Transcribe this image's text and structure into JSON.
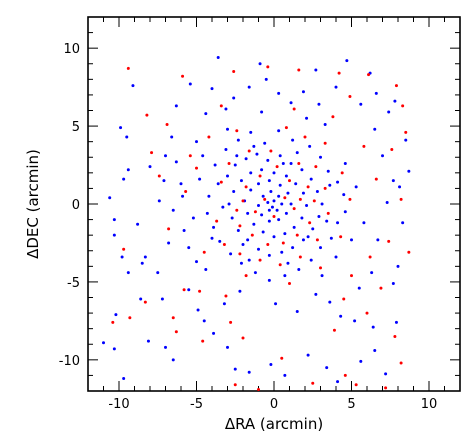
{
  "chart_data": {
    "type": "scatter",
    "title": "",
    "xlabel": "ΔRA (arcmin)",
    "ylabel": "ΔDEC (arcmin)",
    "xlim": [
      -12,
      12
    ],
    "ylim": [
      -12,
      12
    ],
    "x_ticks": [
      -10,
      -5,
      0,
      5,
      10
    ],
    "y_ticks": [
      -10,
      -5,
      0,
      5,
      10
    ],
    "grid": false,
    "legend": "none",
    "series": [
      {
        "color": "#0000ff",
        "points": [
          [
            -9.9,
            4.9
          ],
          [
            -9.5,
            4.3
          ],
          [
            -9.4,
            2.2
          ],
          [
            -9.7,
            1.6
          ],
          [
            -10.6,
            0.4
          ],
          [
            -10.3,
            -1.0
          ],
          [
            -10.3,
            -2.0
          ],
          [
            -9.8,
            -3.4
          ],
          [
            -9.4,
            -4.4
          ],
          [
            -8.5,
            -3.8
          ],
          [
            -8.3,
            -3.4
          ],
          [
            -10.2,
            -7.1
          ],
          [
            -11.0,
            -8.9
          ],
          [
            -10.3,
            -9.3
          ],
          [
            -9.7,
            -11.2
          ],
          [
            -8.6,
            -6.1
          ],
          [
            -8.1,
            -8.8
          ],
          [
            -7.2,
            -6.1
          ],
          [
            -7.0,
            -9.2
          ],
          [
            -6.5,
            -10.0
          ],
          [
            -8.0,
            2.4
          ],
          [
            -7.1,
            1.5
          ],
          [
            -7.0,
            3.1
          ],
          [
            -6.6,
            4.3
          ],
          [
            -6.3,
            2.7
          ],
          [
            -6.0,
            1.3
          ],
          [
            -5.9,
            0.5
          ],
          [
            -6.5,
            -0.4
          ],
          [
            -5.8,
            -1.7
          ],
          [
            -5.5,
            -2.8
          ],
          [
            -5.0,
            -3.7
          ],
          [
            -4.4,
            -4.2
          ],
          [
            -5.5,
            -5.5
          ],
          [
            -4.9,
            -6.8
          ],
          [
            -4.5,
            -7.5
          ],
          [
            -3.9,
            -8.3
          ],
          [
            -3.0,
            -9.2
          ],
          [
            -2.5,
            -10.6
          ],
          [
            -1.6,
            -10.8
          ],
          [
            -0.2,
            -10.3
          ],
          [
            0.7,
            -11.0
          ],
          [
            2.2,
            -9.7
          ],
          [
            3.4,
            -10.5
          ],
          [
            4.1,
            -11.4
          ],
          [
            5.6,
            -10.1
          ],
          [
            6.5,
            -9.4
          ],
          [
            7.2,
            -10.9
          ],
          [
            6.4,
            -7.9
          ],
          [
            5.2,
            -7.5
          ],
          [
            4.3,
            -7.2
          ],
          [
            3.6,
            -6.3
          ],
          [
            5.5,
            -5.4
          ],
          [
            6.3,
            -4.4
          ],
          [
            7.7,
            -5.1
          ],
          [
            8.0,
            -4.0
          ],
          [
            7.9,
            -7.6
          ],
          [
            6.7,
            -2.3
          ],
          [
            7.3,
            0.1
          ],
          [
            7.7,
            1.5
          ],
          [
            8.1,
            1.1
          ],
          [
            8.7,
            2.1
          ],
          [
            7.0,
            3.1
          ],
          [
            6.5,
            4.8
          ],
          [
            7.4,
            5.9
          ],
          [
            6.6,
            7.1
          ],
          [
            6.2,
            8.4
          ],
          [
            5.6,
            6.4
          ],
          [
            4.0,
            7.5
          ],
          [
            2.9,
            6.4
          ],
          [
            2.1,
            5.5
          ],
          [
            1.1,
            6.5
          ],
          [
            0.3,
            7.1
          ],
          [
            -0.5,
            8.0
          ],
          [
            -1.6,
            7.5
          ],
          [
            -2.6,
            6.8
          ],
          [
            -3.1,
            6.1
          ],
          [
            -4.0,
            7.4
          ],
          [
            -4.4,
            5.8
          ],
          [
            -5.4,
            7.7
          ],
          [
            -6.3,
            6.3
          ],
          [
            -5.0,
            4.0
          ],
          [
            -4.6,
            3.1
          ],
          [
            -3.8,
            2.5
          ],
          [
            -3.1,
            3.5
          ],
          [
            -2.3,
            4.1
          ],
          [
            -1.5,
            4.6
          ],
          [
            -0.6,
            3.9
          ],
          [
            0.3,
            4.7
          ],
          [
            1.2,
            4.1
          ],
          [
            2.3,
            3.7
          ],
          [
            3.0,
            3.0
          ],
          [
            3.5,
            2.1
          ],
          [
            4.1,
            1.4
          ],
          [
            4.5,
            0.6
          ],
          [
            4.6,
            -0.5
          ],
          [
            4.1,
            -1.2
          ],
          [
            3.7,
            -2.2
          ],
          [
            3.0,
            -2.8
          ],
          [
            2.4,
            -3.6
          ],
          [
            1.6,
            -4.2
          ],
          [
            0.7,
            -4.6
          ],
          [
            -0.3,
            -4.9
          ],
          [
            -1.2,
            -4.4
          ],
          [
            -2.1,
            -3.8
          ],
          [
            -2.8,
            -3.2
          ],
          [
            -3.5,
            -2.4
          ],
          [
            -3.9,
            -1.5
          ],
          [
            -4.3,
            -0.6
          ],
          [
            -4.2,
            0.5
          ],
          [
            -3.6,
            1.3
          ],
          [
            -3.0,
            1.8
          ],
          [
            -2.5,
            2.5
          ],
          [
            -1.8,
            2.9
          ],
          [
            -1.1,
            3.2
          ],
          [
            -0.4,
            2.8
          ],
          [
            0.4,
            3.1
          ],
          [
            1.1,
            2.6
          ],
          [
            1.8,
            2.2
          ],
          [
            2.4,
            1.6
          ],
          [
            2.8,
            0.8
          ],
          [
            3.1,
            0.0
          ],
          [
            2.9,
            -0.8
          ],
          [
            2.5,
            -1.6
          ],
          [
            1.9,
            -2.3
          ],
          [
            1.2,
            -2.8
          ],
          [
            0.5,
            -3.1
          ],
          [
            -0.3,
            -3.3
          ],
          [
            -1.0,
            -2.9
          ],
          [
            -1.7,
            -2.3
          ],
          [
            -2.3,
            -1.7
          ],
          [
            -2.7,
            -0.9
          ],
          [
            -2.9,
            0.0
          ],
          [
            -2.6,
            0.8
          ],
          [
            -2.1,
            1.5
          ],
          [
            -1.5,
            2.0
          ],
          [
            -0.8,
            2.2
          ],
          [
            0.0,
            2.0
          ],
          [
            0.8,
            1.8
          ],
          [
            1.4,
            1.3
          ],
          [
            1.9,
            0.7
          ],
          [
            2.1,
            -0.1
          ],
          [
            1.8,
            -0.9
          ],
          [
            1.3,
            -1.5
          ],
          [
            0.7,
            -1.9
          ],
          [
            0.0,
            -2.1
          ],
          [
            -0.7,
            -1.8
          ],
          [
            -1.3,
            -1.3
          ],
          [
            -1.7,
            -0.6
          ],
          [
            -1.9,
            0.2
          ],
          [
            -1.5,
            0.9
          ],
          [
            -1.0,
            1.3
          ],
          [
            -0.3,
            1.5
          ],
          [
            0.4,
            1.2
          ],
          [
            0.9,
            0.7
          ],
          [
            1.1,
            0.0
          ],
          [
            0.8,
            -0.6
          ],
          [
            0.3,
            -1.0
          ],
          [
            -0.3,
            -1.1
          ],
          [
            -0.8,
            -0.7
          ],
          [
            -1.0,
            -0.1
          ],
          [
            -0.7,
            0.5
          ],
          [
            -0.2,
            0.8
          ],
          [
            0.3,
            0.5
          ],
          [
            0.5,
            0.0
          ],
          [
            0.2,
            -0.4
          ],
          [
            -0.3,
            -0.4
          ],
          [
            -0.4,
            0.1
          ],
          [
            0.0,
            0.2
          ],
          [
            -0.1,
            -0.2
          ],
          [
            0.6,
            2.6
          ],
          [
            -1.3,
            3.7
          ],
          [
            -2.0,
            -2.6
          ],
          [
            2.2,
            -2.1
          ],
          [
            3.4,
            -1.1
          ],
          [
            1.5,
            3.3
          ],
          [
            -3.3,
            -0.2
          ],
          [
            -2.4,
            3.1
          ],
          [
            0.9,
            -3.8
          ],
          [
            -1.6,
            -3.6
          ],
          [
            3.6,
            1.2
          ],
          [
            4.6,
            2.6
          ],
          [
            5.0,
            -2.3
          ],
          [
            5.8,
            -1.2
          ],
          [
            5.3,
            1.1
          ],
          [
            4.0,
            -3.4
          ],
          [
            3.1,
            -4.6
          ],
          [
            -4.8,
            1.6
          ],
          [
            -5.2,
            -0.9
          ],
          [
            -4.0,
            -2.2
          ],
          [
            -3.0,
            4.8
          ],
          [
            -0.8,
            5.9
          ],
          [
            1.9,
            7.2
          ],
          [
            3.3,
            5.1
          ],
          [
            -2.2,
            -5.6
          ],
          [
            0.1,
            -6.4
          ],
          [
            1.5,
            -6.9
          ],
          [
            -3.2,
            -6.4
          ],
          [
            2.7,
            -5.8
          ],
          [
            -6.8,
            -2.5
          ],
          [
            -7.5,
            -4.4
          ],
          [
            -8.8,
            -1.3
          ],
          [
            -7.4,
            0.2
          ],
          [
            8.3,
            -1.2
          ],
          [
            8.5,
            4.1
          ],
          [
            7.8,
            6.6
          ],
          [
            -9.1,
            7.6
          ],
          [
            -0.9,
            9.0
          ],
          [
            4.7,
            9.2
          ],
          [
            -3.6,
            9.4
          ],
          [
            2.7,
            8.6
          ]
        ]
      },
      {
        "color": "#ff0000",
        "points": [
          [
            -9.4,
            8.7
          ],
          [
            -5.9,
            8.2
          ],
          [
            -2.6,
            8.5
          ],
          [
            -0.4,
            8.8
          ],
          [
            1.6,
            8.6
          ],
          [
            4.2,
            8.4
          ],
          [
            6.1,
            8.3
          ],
          [
            7.9,
            7.6
          ],
          [
            8.3,
            6.3
          ],
          [
            8.5,
            4.6
          ],
          [
            7.6,
            3.5
          ],
          [
            -6.9,
            5.1
          ],
          [
            -7.9,
            3.3
          ],
          [
            -8.2,
            5.7
          ],
          [
            -9.7,
            -2.9
          ],
          [
            -10.4,
            -7.6
          ],
          [
            -9.3,
            -7.3
          ],
          [
            -8.3,
            -6.3
          ],
          [
            -6.5,
            -7.3
          ],
          [
            -6.3,
            -8.2
          ],
          [
            -5.8,
            -5.5
          ],
          [
            -4.8,
            -5.6
          ],
          [
            -3.1,
            -5.9
          ],
          [
            -2.8,
            -7.6
          ],
          [
            -2.0,
            -8.6
          ],
          [
            -2.5,
            -11.6
          ],
          [
            -1.0,
            -11.9
          ],
          [
            0.5,
            -9.9
          ],
          [
            2.5,
            -11.5
          ],
          [
            4.6,
            -11.0
          ],
          [
            5.3,
            -11.6
          ],
          [
            7.2,
            -11.8
          ],
          [
            8.2,
            -10.2
          ],
          [
            7.8,
            -8.5
          ],
          [
            6.0,
            -7.0
          ],
          [
            4.5,
            -6.1
          ],
          [
            5.0,
            -4.6
          ],
          [
            6.2,
            -3.4
          ],
          [
            7.4,
            -2.4
          ],
          [
            8.2,
            0.3
          ],
          [
            6.6,
            1.6
          ],
          [
            5.8,
            3.7
          ],
          [
            3.8,
            5.6
          ],
          [
            2.0,
            4.3
          ],
          [
            1.7,
            0.3
          ],
          [
            -5.7,
            0.8
          ],
          [
            -5.0,
            2.3
          ],
          [
            -4.2,
            4.3
          ],
          [
            -3.4,
            1.4
          ],
          [
            -2.0,
            0.2
          ],
          [
            -1.2,
            -0.5
          ],
          [
            -0.6,
            0.3
          ],
          [
            0.0,
            -0.8
          ],
          [
            0.7,
            0.4
          ],
          [
            1.3,
            -0.3
          ],
          [
            1.0,
            1.5
          ],
          [
            0.2,
            2.4
          ],
          [
            -0.9,
            1.8
          ],
          [
            -1.8,
            1.1
          ],
          [
            -2.4,
            -0.4
          ],
          [
            -2.2,
            -1.4
          ],
          [
            -1.4,
            -2.0
          ],
          [
            -0.4,
            -2.6
          ],
          [
            0.6,
            -2.5
          ],
          [
            1.5,
            -2.0
          ],
          [
            2.3,
            -1.2
          ],
          [
            2.6,
            0.2
          ],
          [
            2.2,
            1.1
          ],
          [
            1.6,
            2.6
          ],
          [
            -0.2,
            3.4
          ],
          [
            -1.6,
            3.4
          ],
          [
            -2.9,
            2.6
          ],
          [
            -3.7,
            -1.1
          ],
          [
            -3.2,
            -2.6
          ],
          [
            -2.2,
            -3.2
          ],
          [
            -0.9,
            -3.6
          ],
          [
            0.4,
            -3.9
          ],
          [
            1.7,
            -3.4
          ],
          [
            2.8,
            -2.3
          ],
          [
            3.5,
            -0.6
          ],
          [
            3.3,
            1.0
          ],
          [
            2.7,
            2.4
          ],
          [
            -4.5,
            -3.1
          ],
          [
            -1.8,
            -4.6
          ],
          [
            1.0,
            -5.1
          ],
          [
            3.0,
            -4.1
          ],
          [
            4.3,
            -2.1
          ],
          [
            4.9,
            0.3
          ],
          [
            4.4,
            2.0
          ],
          [
            3.3,
            3.9
          ],
          [
            0.8,
            4.9
          ],
          [
            -2.4,
            4.7
          ],
          [
            -5.4,
            3.1
          ],
          [
            -6.8,
            -1.6
          ],
          [
            -4.6,
            -8.8
          ],
          [
            3.9,
            -8.1
          ],
          [
            6.9,
            -5.4
          ],
          [
            -7.4,
            1.8
          ],
          [
            -3.4,
            6.3
          ],
          [
            1.3,
            6.1
          ],
          [
            4.9,
            6.9
          ],
          [
            8.7,
            -3.1
          ]
        ]
      }
    ]
  }
}
